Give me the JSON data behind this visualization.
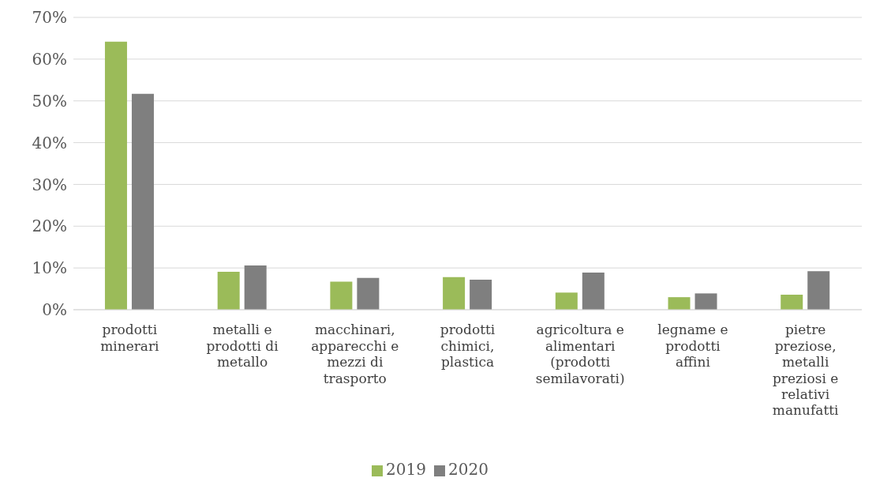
{
  "chart_data": {
    "type": "bar",
    "categories": [
      "prodotti minerari",
      "metalli e prodotti di metallo",
      "macchinari, apparecchi e mezzi di trasporto",
      "prodotti chimici, plastica",
      "agricoltura e alimentari (prodotti semilavorati)",
      "legname e prodotti affini",
      "pietre preziose, metalli preziosi e relativi manufatti"
    ],
    "series": [
      {
        "name": "2019",
        "color": "#9bbb59",
        "values": [
          64.2,
          9.1,
          6.7,
          7.8,
          4.1,
          3.0,
          3.6
        ]
      },
      {
        "name": "2020",
        "color": "#7f7f7f",
        "values": [
          51.7,
          10.6,
          7.6,
          7.2,
          8.9,
          3.9,
          9.2
        ]
      }
    ],
    "ylim": [
      0,
      70
    ],
    "yticks": [
      {
        "value": 0,
        "label": "0%"
      },
      {
        "value": 10,
        "label": "10%"
      },
      {
        "value": 20,
        "label": "20%"
      },
      {
        "value": 30,
        "label": "30%"
      },
      {
        "value": 40,
        "label": "40%"
      },
      {
        "value": 50,
        "label": "50%"
      },
      {
        "value": 60,
        "label": "60%"
      },
      {
        "value": 70,
        "label": "70%"
      }
    ],
    "grid": "y",
    "legend": "bottom"
  }
}
